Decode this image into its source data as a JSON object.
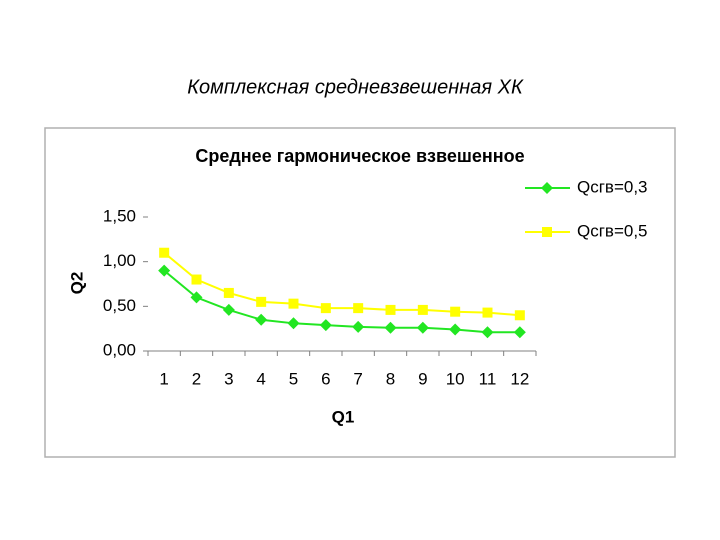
{
  "slide": {
    "title": "Комплексная средневзвешенная ХК"
  },
  "chart_data": {
    "type": "line",
    "title": "Среднее гармоническое взвешенное",
    "x_label": "Q1",
    "y_label": "Q2",
    "categories": [
      "1",
      "2",
      "3",
      "4",
      "5",
      "6",
      "7",
      "8",
      "9",
      "10",
      "11",
      "12"
    ],
    "series": [
      {
        "name": "Qсгв=0,3",
        "color": "#22e622",
        "marker": "diamond",
        "values": [
          0.9,
          0.6,
          0.46,
          0.35,
          0.31,
          0.29,
          0.27,
          0.26,
          0.26,
          0.24,
          0.21,
          0.21
        ]
      },
      {
        "name": "Qсгв=0,5",
        "color": "#ffff00",
        "marker": "square",
        "values": [
          1.1,
          0.8,
          0.65,
          0.55,
          0.53,
          0.48,
          0.48,
          0.46,
          0.46,
          0.44,
          0.43,
          0.4
        ]
      }
    ],
    "ylim": [
      0,
      1.5
    ],
    "yticks": [
      {
        "value": 0,
        "label": "0,00"
      },
      {
        "value": 0.5,
        "label": "0,50"
      },
      {
        "value": 1,
        "label": "1,00"
      },
      {
        "value": 1.5,
        "label": "1,50"
      }
    ],
    "grid": false,
    "legend": "right"
  }
}
